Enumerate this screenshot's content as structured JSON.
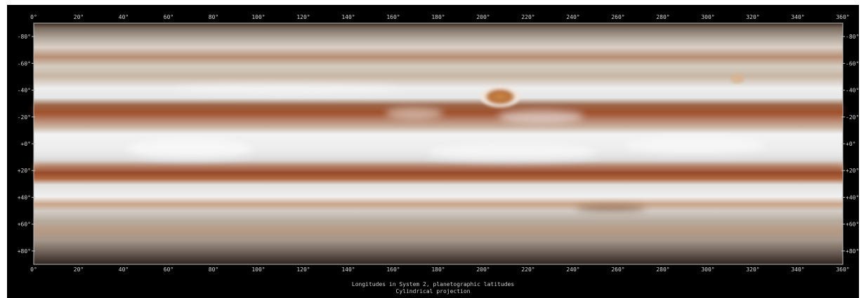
{
  "map": {
    "longitude_ticks": [
      "0°",
      "20°",
      "40°",
      "60°",
      "80°",
      "100°",
      "120°",
      "140°",
      "160°",
      "180°",
      "200°",
      "220°",
      "240°",
      "260°",
      "280°",
      "300°",
      "320°",
      "340°",
      "360°"
    ],
    "latitude_ticks": [
      {
        "label": "-80°",
        "lat": -80
      },
      {
        "label": "-60°",
        "lat": -60
      },
      {
        "label": "-40°",
        "lat": -40
      },
      {
        "label": "-20°",
        "lat": -20
      },
      {
        "label": "+0°",
        "lat": 0
      },
      {
        "label": "+20°",
        "lat": 20
      },
      {
        "label": "+40°",
        "lat": 40
      },
      {
        "label": "+60°",
        "lat": 60
      },
      {
        "label": "+80°",
        "lat": 80
      }
    ]
  },
  "caption": {
    "line1": "Longitudes in System 2, planetographic latitudes",
    "line2": "Cylindrical projection"
  },
  "colors": {
    "belt_dark": "#8a4a2a",
    "zone_light": "#e8e8e8",
    "red_spot": "#c0783a",
    "background": "#000000"
  }
}
